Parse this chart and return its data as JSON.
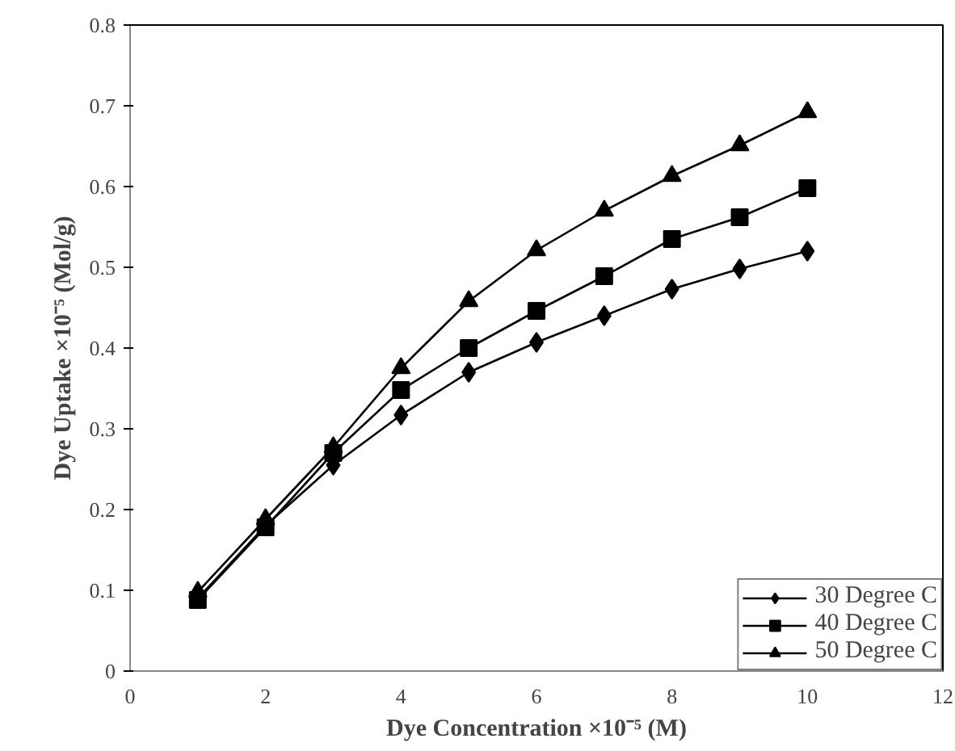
{
  "chart_data": {
    "type": "line",
    "xlabel": "Dye Concentration ×10⁻⁵ (M)",
    "ylabel": "Dye Uptake ×10⁻⁵ (Mol/g)",
    "x": [
      1,
      2,
      3,
      4,
      5,
      6,
      7,
      8,
      9,
      10
    ],
    "series": [
      {
        "name": "30 Degree C",
        "color": "#000000",
        "marker": "diamond",
        "values": [
          0.09,
          0.18,
          0.255,
          0.317,
          0.37,
          0.407,
          0.44,
          0.473,
          0.498,
          0.52
        ]
      },
      {
        "name": "40 Degree C",
        "color": "#000000",
        "marker": "square",
        "values": [
          0.088,
          0.178,
          0.27,
          0.348,
          0.4,
          0.446,
          0.489,
          0.535,
          0.562,
          0.598
        ]
      },
      {
        "name": "50 Degree C",
        "color": "#000000",
        "marker": "triangle",
        "values": [
          0.098,
          0.188,
          0.277,
          0.375,
          0.458,
          0.521,
          0.57,
          0.613,
          0.651,
          0.692
        ]
      }
    ],
    "xlim": [
      0,
      12
    ],
    "xticks": [
      0,
      2,
      4,
      6,
      8,
      10,
      12
    ],
    "ylim": [
      0,
      0.8
    ],
    "yticks": [
      0,
      0.1,
      0.2,
      0.3,
      0.4,
      0.5,
      0.6,
      0.7,
      0.8
    ],
    "grid": false,
    "legend": "bottom right",
    "line_style": "solid"
  }
}
